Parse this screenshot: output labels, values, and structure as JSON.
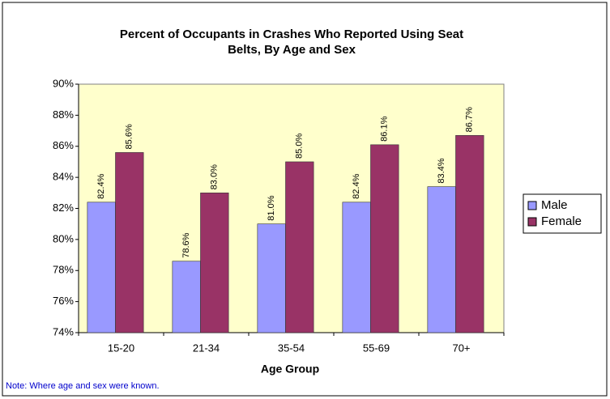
{
  "chart_data": {
    "type": "bar",
    "title": [
      "Percent of Occupants in Crashes Who Reported Using Seat",
      "Belts, By Age and Sex"
    ],
    "x_label": "Age Group",
    "note": "Note: Where age and sex were known.",
    "categories": [
      "15-20",
      "21-34",
      "35-54",
      "55-69",
      "70+"
    ],
    "series": [
      {
        "name": "Male",
        "color": "#9999ff",
        "values": [
          82.4,
          78.6,
          81.0,
          82.4,
          83.4
        ],
        "value_labels": [
          "82.4%",
          "78.6%",
          "81.0%",
          "82.4%",
          "83.4%"
        ]
      },
      {
        "name": "Female",
        "color": "#993366",
        "values": [
          85.6,
          83.0,
          85.0,
          86.1,
          86.7
        ],
        "value_labels": [
          "85.6%",
          "83.0%",
          "85.0%",
          "86.1%",
          "86.7%"
        ]
      }
    ],
    "ylim": [
      74,
      90
    ],
    "yticks": [
      {
        "value": 74,
        "label": "74%"
      },
      {
        "value": 76,
        "label": "76%"
      },
      {
        "value": 78,
        "label": "78%"
      },
      {
        "value": 80,
        "label": "80%"
      },
      {
        "value": 82,
        "label": "82%"
      },
      {
        "value": 84,
        "label": "84%"
      },
      {
        "value": 86,
        "label": "86%"
      },
      {
        "value": 88,
        "label": "88%"
      },
      {
        "value": 90,
        "label": "90%"
      }
    ],
    "grid": false,
    "legend": "right",
    "plot_background": "#ffffcc"
  }
}
